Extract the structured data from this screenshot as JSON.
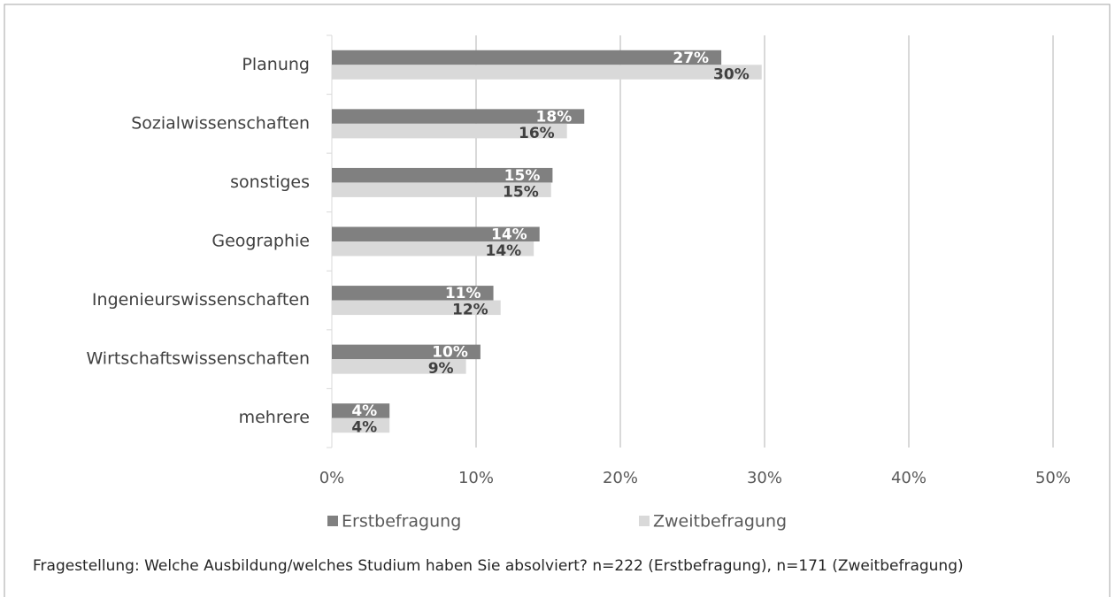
{
  "chart_data": {
    "type": "hbar",
    "categories": [
      "Planung",
      "Sozialwissenschaften",
      "sonstiges",
      "Geographie",
      "Ingenieurswissenschaften",
      "Wirtschaftswissenschaften",
      "mehrere"
    ],
    "series": [
      {
        "name": "Erstbefragung",
        "color": "#808080",
        "values": [
          27.0,
          17.5,
          15.3,
          14.4,
          11.2,
          10.3,
          4.0
        ],
        "value_labels": [
          "27%",
          "18%",
          "15%",
          "14%",
          "11%",
          "10%",
          "4%"
        ]
      },
      {
        "name": "Zweitbefragung",
        "color": "#d9d9d9",
        "values": [
          29.8,
          16.3,
          15.2,
          14.0,
          11.7,
          9.3,
          4.0
        ],
        "value_labels": [
          "30%",
          "16%",
          "15%",
          "14%",
          "12%",
          "9%",
          "4%"
        ]
      }
    ],
    "xlim": [
      0,
      50
    ],
    "xticks": [
      {
        "value": 0,
        "label": "0%"
      },
      {
        "value": 10,
        "label": "10%"
      },
      {
        "value": 20,
        "label": "20%"
      },
      {
        "value": 30,
        "label": "30%"
      },
      {
        "value": 40,
        "label": "40%"
      },
      {
        "value": 50,
        "label": "50%"
      }
    ],
    "grid": true,
    "legend": "bottom",
    "note": "Fragestellung: Welche Ausbildung/welches Studium haben Sie absolviert? n=222 (Erstbefragung), n=171 (Zweitbefragung)"
  }
}
